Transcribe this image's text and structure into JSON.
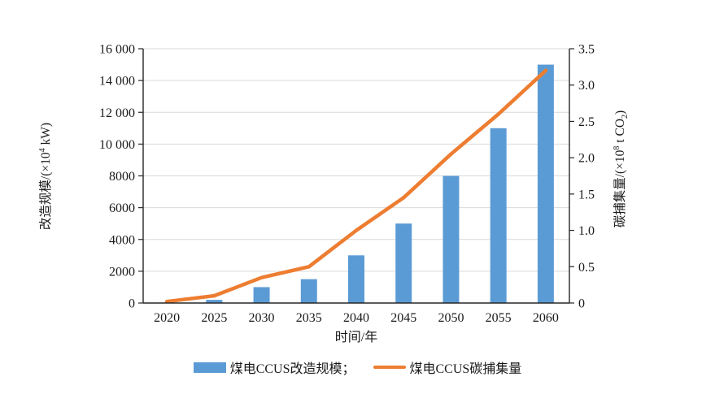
{
  "figure": {
    "background": "#ffffff",
    "axis_color": "#262626",
    "gridline_color": "#d9d9d9"
  },
  "axes": {
    "left_label": {
      "pre": "改造规模/(×10",
      "sup": "4",
      "post": " kW)"
    },
    "right_label": {
      "pre": "碳捕集量/(×10",
      "sup": "8",
      "mid": " t CO",
      "sub": "2",
      "post": ")"
    },
    "x_label": "时间/年"
  },
  "legend": {
    "items": [
      {
        "label": "煤电CCUS改造规模；",
        "swatch": "bar",
        "color": "#5B9BD5"
      },
      {
        "label": "煤电CCUS碳捕集量",
        "swatch": "line",
        "color": "#ED7D31"
      }
    ]
  },
  "chart_data": {
    "type": "bar+line",
    "title": "",
    "categories": [
      "2020",
      "2025",
      "2030",
      "2035",
      "2040",
      "2045",
      "2050",
      "2055",
      "2060"
    ],
    "series": [
      {
        "name": "煤电CCUS改造规模",
        "type": "bar",
        "axis": "left",
        "color": "#5B9BD5",
        "values": [
          0,
          200,
          1000,
          1500,
          3000,
          5000,
          8000,
          11000,
          15000
        ]
      },
      {
        "name": "煤电CCUS碳捕集量",
        "type": "line",
        "axis": "right",
        "color": "#ED7D31",
        "values": [
          0.02,
          0.1,
          0.35,
          0.5,
          1.0,
          1.45,
          2.05,
          2.6,
          3.2
        ]
      }
    ],
    "left_axis": {
      "label": "改造规模/(×10⁴ kW)",
      "min": 0,
      "max": 16000,
      "tick_step": 2000,
      "tick_labels": [
        "0",
        "2000",
        "4000",
        "6000",
        "8000",
        "10 000",
        "12 000",
        "14 000",
        "16 000"
      ]
    },
    "right_axis": {
      "label": "碳捕集量/(×10⁸ t CO₂)",
      "min": 0,
      "max": 3.5,
      "tick_step": 0.5,
      "tick_labels": [
        "0",
        "0.5",
        "1.0",
        "1.5",
        "2.0",
        "2.5",
        "3.0",
        "3.5"
      ]
    },
    "x_axis": {
      "label": "时间/年"
    },
    "grid": "horizontal",
    "legend_position": "bottom"
  }
}
